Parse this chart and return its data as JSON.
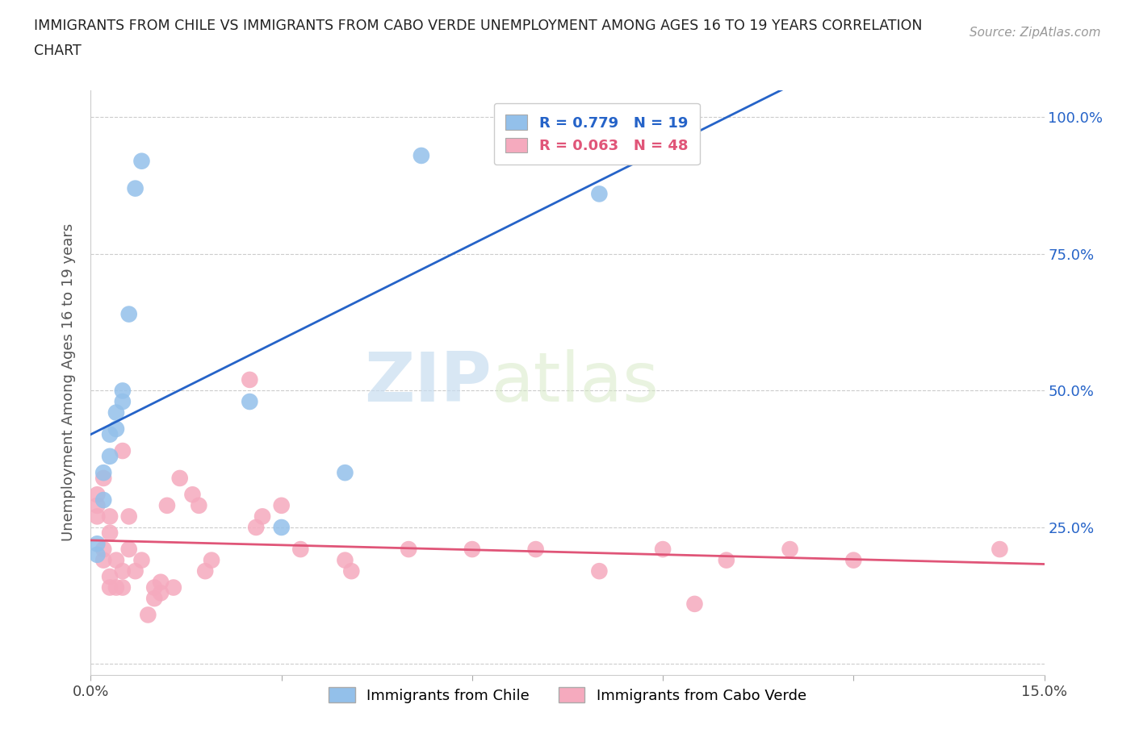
{
  "title_line1": "IMMIGRANTS FROM CHILE VS IMMIGRANTS FROM CABO VERDE UNEMPLOYMENT AMONG AGES 16 TO 19 YEARS CORRELATION",
  "title_line2": "CHART",
  "source": "Source: ZipAtlas.com",
  "ylabel": "Unemployment Among Ages 16 to 19 years",
  "xlim": [
    0.0,
    0.15
  ],
  "ylim": [
    -0.02,
    1.05
  ],
  "xticks": [
    0.0,
    0.03,
    0.06,
    0.09,
    0.12,
    0.15
  ],
  "xticklabels": [
    "0.0%",
    "",
    "",
    "",
    "",
    "15.0%"
  ],
  "yticks": [
    0.0,
    0.25,
    0.5,
    0.75,
    1.0
  ],
  "yticklabels_right": [
    "",
    "25.0%",
    "50.0%",
    "75.0%",
    "100.0%"
  ],
  "chile_color": "#93c0ea",
  "cabo_verde_color": "#f5aabe",
  "chile_R": 0.779,
  "chile_N": 19,
  "cabo_verde_R": 0.063,
  "cabo_verde_N": 48,
  "chile_line_color": "#2563c8",
  "cabo_verde_line_color": "#e05578",
  "watermark_zip": "ZIP",
  "watermark_atlas": "atlas",
  "background_color": "#ffffff",
  "grid_color": "#cccccc",
  "chile_x": [
    0.001,
    0.001,
    0.002,
    0.002,
    0.003,
    0.003,
    0.004,
    0.004,
    0.005,
    0.005,
    0.006,
    0.007,
    0.008,
    0.025,
    0.03,
    0.04,
    0.052,
    0.065,
    0.08
  ],
  "chile_y": [
    0.2,
    0.22,
    0.3,
    0.35,
    0.38,
    0.42,
    0.43,
    0.46,
    0.48,
    0.5,
    0.64,
    0.87,
    0.92,
    0.48,
    0.25,
    0.35,
    0.93,
    0.93,
    0.86
  ],
  "cabo_verde_x": [
    0.001,
    0.001,
    0.001,
    0.002,
    0.002,
    0.002,
    0.003,
    0.003,
    0.003,
    0.003,
    0.004,
    0.004,
    0.005,
    0.005,
    0.005,
    0.006,
    0.006,
    0.007,
    0.008,
    0.009,
    0.01,
    0.01,
    0.011,
    0.011,
    0.012,
    0.013,
    0.014,
    0.016,
    0.017,
    0.018,
    0.019,
    0.025,
    0.026,
    0.027,
    0.03,
    0.033,
    0.04,
    0.041,
    0.05,
    0.06,
    0.07,
    0.08,
    0.09,
    0.095,
    0.1,
    0.11,
    0.12,
    0.143
  ],
  "cabo_verde_y": [
    0.27,
    0.29,
    0.31,
    0.19,
    0.21,
    0.34,
    0.14,
    0.16,
    0.24,
    0.27,
    0.14,
    0.19,
    0.14,
    0.17,
    0.39,
    0.21,
    0.27,
    0.17,
    0.19,
    0.09,
    0.12,
    0.14,
    0.13,
    0.15,
    0.29,
    0.14,
    0.34,
    0.31,
    0.29,
    0.17,
    0.19,
    0.52,
    0.25,
    0.27,
    0.29,
    0.21,
    0.19,
    0.17,
    0.21,
    0.21,
    0.21,
    0.17,
    0.21,
    0.11,
    0.19,
    0.21,
    0.19,
    0.21
  ],
  "legend_R_color_chile": "#2563c8",
  "legend_R_color_cabo": "#e05578",
  "bottom_legend_chile": "Immigrants from Chile",
  "bottom_legend_cabo": "Immigrants from Cabo Verde"
}
